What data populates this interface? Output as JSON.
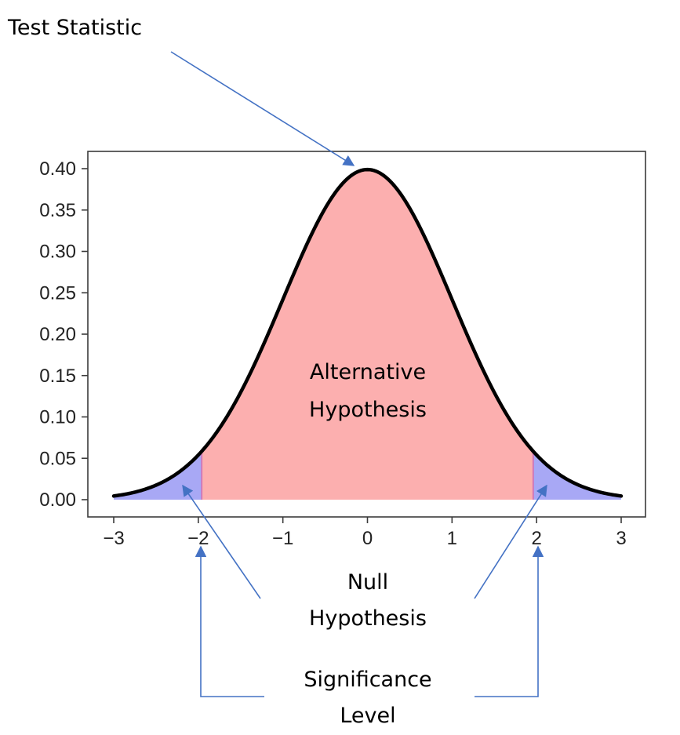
{
  "chart_data": {
    "type": "area",
    "title": "",
    "xlabel": "",
    "ylabel": "",
    "xlim": [
      -3,
      3
    ],
    "ylim": [
      0,
      0.4
    ],
    "grid": false,
    "x_ticks": [
      -3,
      -2,
      -1,
      0,
      1,
      2,
      3
    ],
    "x_tick_labels": [
      "−3",
      "−2",
      "−1",
      "0",
      "1",
      "2",
      "3"
    ],
    "y_ticks": [
      0.0,
      0.05,
      0.1,
      0.15,
      0.2,
      0.25,
      0.3,
      0.35,
      0.4
    ],
    "y_tick_labels": [
      "0.00",
      "0.05",
      "0.10",
      "0.15",
      "0.20",
      "0.25",
      "0.30",
      "0.35",
      "0.40"
    ],
    "series": [
      {
        "distribution": "standard-normal-pdf",
        "mean": 0,
        "sd": 1,
        "x_range": [
          -3,
          3
        ],
        "line_color": "#000000"
      }
    ],
    "regions": [
      {
        "x_range": [
          -3,
          -1.96
        ],
        "color": "#a8a8f5"
      },
      {
        "x_range": [
          -1.96,
          1.96
        ],
        "color": "#fcafaf"
      },
      {
        "x_range": [
          1.96,
          3
        ],
        "color": "#a8a8f5"
      }
    ],
    "region_labels": {
      "alternative": [
        "Alternative",
        "Hypothesis"
      ]
    },
    "annotations": {
      "test_statistic": "Test Statistic",
      "null_hypothesis": [
        "Null",
        "Hypothesis"
      ],
      "significance_level": [
        "Significance",
        "Level"
      ]
    },
    "arrow_color": "#4472c4"
  }
}
